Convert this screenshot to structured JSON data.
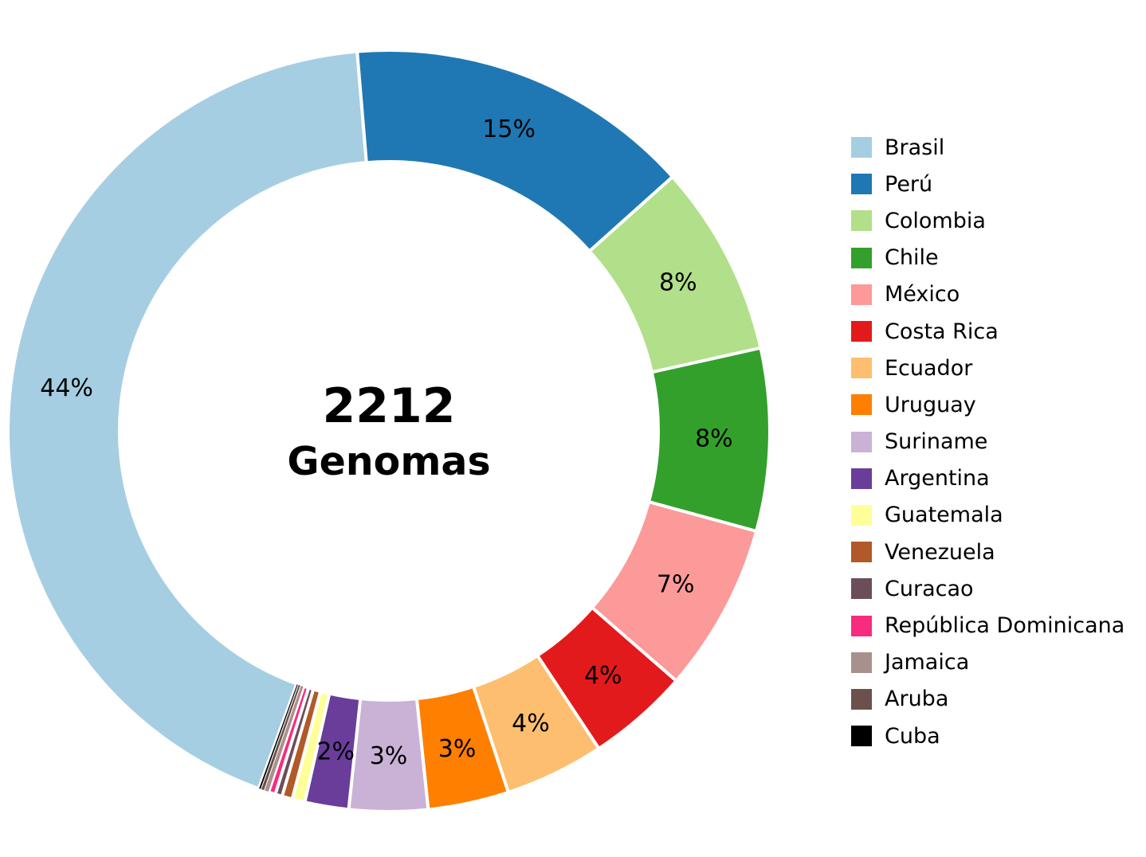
{
  "chart_data": {
    "type": "pie",
    "center": {
      "value": "2212",
      "label": "Genomas"
    },
    "legend_position": "right",
    "slices": [
      {
        "name": "Brasil",
        "label": "44%",
        "value": 44.0,
        "color": "#a6cee3"
      },
      {
        "name": "Perú",
        "label": "15%",
        "value": 15.0,
        "color": "#1f78b4"
      },
      {
        "name": "Colombia",
        "label": "8%",
        "value": 8.3,
        "color": "#b2df8a"
      },
      {
        "name": "Chile",
        "label": "8%",
        "value": 7.9,
        "color": "#33a02c"
      },
      {
        "name": "México",
        "label": "7%",
        "value": 7.3,
        "color": "#fb9a99"
      },
      {
        "name": "Costa Rica",
        "label": "4%",
        "value": 4.4,
        "color": "#e31a1c"
      },
      {
        "name": "Ecuador",
        "label": "4%",
        "value": 4.3,
        "color": "#fdbf6f"
      },
      {
        "name": "Uruguay",
        "label": "3%",
        "value": 3.5,
        "color": "#ff7f00"
      },
      {
        "name": "Suriname",
        "label": "3%",
        "value": 3.4,
        "color": "#cab2d6"
      },
      {
        "name": "Argentina",
        "label": "2%",
        "value": 1.9,
        "color": "#6a3d9a"
      },
      {
        "name": "Guatemala",
        "label": "",
        "value": 0.55,
        "color": "#ffff99"
      },
      {
        "name": "Venezuela",
        "label": "",
        "value": 0.45,
        "color": "#b15928"
      },
      {
        "name": "Curacao",
        "label": "",
        "value": 0.3,
        "color": "#6b4e5a"
      },
      {
        "name": "República Dominicana",
        "label": "",
        "value": 0.3,
        "color": "#f72c7f"
      },
      {
        "name": "Jamaica",
        "label": "",
        "value": 0.2,
        "color": "#a8918c"
      },
      {
        "name": "Aruba",
        "label": "",
        "value": 0.15,
        "color": "#6b504e"
      },
      {
        "name": "Cuba",
        "label": "",
        "value": 0.1,
        "color": "#000000"
      }
    ]
  }
}
